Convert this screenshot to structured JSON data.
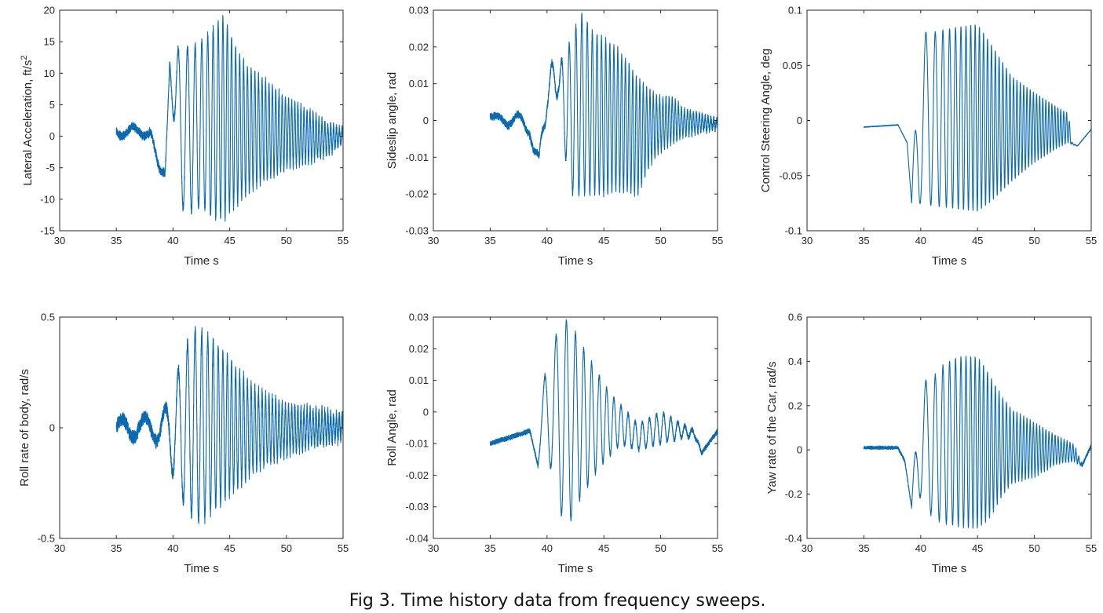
{
  "caption": "Fig 3. Time history data from frequency sweeps.",
  "colors": {
    "series": "#0b69b0",
    "axes": "#262626"
  },
  "chart_data": [
    {
      "type": "line",
      "xlabel": "Time s",
      "ylabel": "Lateral Acceleration, ft/s",
      "ylabel_sup": "2",
      "xlim": [
        30,
        55
      ],
      "ylim": [
        -15,
        20
      ],
      "xticks": [
        30,
        35,
        40,
        45,
        50,
        55
      ],
      "yticks": [
        -15,
        -10,
        -5,
        0,
        5,
        10,
        15,
        20
      ],
      "ytick_labels": [
        "-15",
        "-10",
        "-5",
        "0",
        "5",
        "10",
        "15",
        "20"
      ],
      "series": [
        {
          "x_range": [
            35,
            55
          ],
          "envelope": [
            [
              35,
              0,
              1.5
            ],
            [
              38,
              0,
              1.5
            ],
            [
              39.3,
              -6,
              -10
            ],
            [
              39.7,
              11,
              12
            ],
            [
              40.5,
              14,
              -11
            ],
            [
              41.5,
              14,
              -12
            ],
            [
              42.5,
              15,
              -11
            ],
            [
              43.5,
              17,
              -13
            ],
            [
              44.5,
              19,
              -13
            ],
            [
              45.5,
              14,
              -11
            ],
            [
              46.5,
              11,
              -9
            ],
            [
              48,
              9,
              -7
            ],
            [
              50,
              6,
              -5
            ],
            [
              52,
              4,
              -4
            ],
            [
              53.5,
              2,
              -3
            ],
            [
              55,
              1,
              -1
            ]
          ],
          "sweep": [
            [
              35,
              0.5
            ],
            [
              38.5,
              0.5
            ],
            [
              40,
              0.9
            ],
            [
              45,
              2.7
            ],
            [
              50,
              3.6
            ],
            [
              55,
              4
            ]
          ],
          "noise": 0.8
        }
      ]
    },
    {
      "type": "line",
      "xlabel": "Time s",
      "ylabel": "Sideslip angle, rad",
      "xlim": [
        30,
        55
      ],
      "ylim": [
        -0.03,
        0.03
      ],
      "xticks": [
        30,
        35,
        40,
        45,
        50,
        55
      ],
      "yticks": [
        -0.03,
        -0.02,
        -0.01,
        0,
        0.01,
        0.02,
        0.03
      ],
      "ytick_labels": [
        "-0.03",
        "-0.02",
        "-0.01",
        "0",
        "0.01",
        "0.02",
        "0.03"
      ],
      "series": [
        {
          "x_range": [
            35,
            55
          ],
          "envelope": [
            [
              35,
              0.001,
              0.001
            ],
            [
              37,
              0.002,
              -0.002
            ],
            [
              38.5,
              0.001,
              -0.004
            ],
            [
              39.3,
              -0.01,
              -0.018
            ],
            [
              40,
              0.016,
              0.003
            ],
            [
              41,
              0.015,
              0.007
            ],
            [
              42,
              0.021,
              -0.02
            ],
            [
              43,
              0.029,
              -0.02
            ],
            [
              44,
              0.024,
              -0.02
            ],
            [
              45,
              0.022,
              -0.02
            ],
            [
              46,
              0.02,
              -0.019
            ],
            [
              47,
              0.016,
              -0.019
            ],
            [
              48,
              0.011,
              -0.02
            ],
            [
              49,
              0.008,
              -0.012
            ],
            [
              50,
              0.006,
              -0.008
            ],
            [
              51,
              0.006,
              -0.006
            ],
            [
              52,
              0.003,
              -0.004
            ],
            [
              55,
              0,
              -0.002
            ]
          ],
          "sweep": [
            [
              35,
              0.5
            ],
            [
              38.5,
              0.5
            ],
            [
              40,
              0.9
            ],
            [
              45,
              2.7
            ],
            [
              50,
              3.6
            ],
            [
              55,
              4
            ]
          ],
          "noise": 0.0012
        }
      ]
    },
    {
      "type": "line",
      "xlabel": "Time s",
      "ylabel": "Control Steering Angle, deg",
      "xlim": [
        30,
        55
      ],
      "ylim": [
        -0.1,
        0.1
      ],
      "xticks": [
        30,
        35,
        40,
        45,
        50,
        55
      ],
      "yticks": [
        -0.1,
        -0.05,
        0,
        0.05,
        0.1
      ],
      "ytick_labels": [
        "-0.1",
        "-0.05",
        "0",
        "0.05",
        "0.1"
      ],
      "series": [
        {
          "x_range": [
            35,
            55
          ],
          "envelope": [
            [
              35,
              -0.006,
              -0.006
            ],
            [
              38,
              -0.004,
              -0.004
            ],
            [
              38.8,
              -0.02,
              -0.02
            ],
            [
              39.2,
              -0.075,
              -0.075
            ],
            [
              39.8,
              0.08,
              -0.075
            ],
            [
              41,
              0.08,
              -0.077
            ],
            [
              43,
              0.084,
              -0.08
            ],
            [
              45,
              0.087,
              -0.082
            ],
            [
              46,
              0.072,
              -0.075
            ],
            [
              48,
              0.04,
              -0.055
            ],
            [
              50,
              0.025,
              -0.038
            ],
            [
              52,
              0.012,
              -0.025
            ],
            [
              53,
              0.006,
              -0.02
            ],
            [
              53.3,
              -0.02,
              -0.022
            ],
            [
              53.8,
              -0.023,
              -0.023
            ],
            [
              55,
              -0.008,
              -0.008
            ]
          ],
          "sweep": [
            [
              35,
              0.5
            ],
            [
              38.5,
              0.5
            ],
            [
              40,
              0.9
            ],
            [
              45,
              2.7
            ],
            [
              50,
              3.6
            ],
            [
              53.3,
              4
            ],
            [
              55,
              4
            ]
          ],
          "noise": 0.0004
        }
      ]
    },
    {
      "type": "line",
      "xlabel": "Time s",
      "ylabel": "Roll rate of body, rad/s",
      "xlim": [
        30,
        55
      ],
      "ylim": [
        -0.5,
        0.5
      ],
      "xticks": [
        30,
        35,
        40,
        45,
        50,
        55
      ],
      "yticks": [
        -0.5,
        0,
        0.5
      ],
      "ytick_labels": [
        "-0.5",
        "0",
        "0.5"
      ],
      "series": [
        {
          "x_range": [
            35,
            55
          ],
          "envelope": [
            [
              35,
              0.04,
              -0.04
            ],
            [
              38,
              0.05,
              -0.05
            ],
            [
              39.5,
              0.1,
              -0.08
            ],
            [
              40,
              0.18,
              -0.22
            ],
            [
              41,
              0.35,
              -0.35
            ],
            [
              42,
              0.44,
              -0.42
            ],
            [
              43,
              0.42,
              -0.4
            ],
            [
              44,
              0.36,
              -0.34
            ],
            [
              45,
              0.3,
              -0.3
            ],
            [
              46,
              0.24,
              -0.25
            ],
            [
              47,
              0.18,
              -0.2
            ],
            [
              48,
              0.15,
              -0.16
            ],
            [
              50,
              0.1,
              -0.12
            ],
            [
              52,
              0.08,
              -0.08
            ],
            [
              55,
              0.05,
              -0.05
            ]
          ],
          "sweep": [
            [
              35,
              0.5
            ],
            [
              38.5,
              0.5
            ],
            [
              40,
              0.9
            ],
            [
              45,
              2.7
            ],
            [
              50,
              3.6
            ],
            [
              55,
              4
            ]
          ],
          "noise": 0.035
        }
      ]
    },
    {
      "type": "line",
      "xlabel": "Time s",
      "ylabel": "Roll Angle, rad",
      "xlim": [
        30,
        55
      ],
      "ylim": [
        -0.04,
        0.03
      ],
      "xticks": [
        30,
        35,
        40,
        45,
        50,
        55
      ],
      "yticks": [
        -0.04,
        -0.03,
        -0.02,
        -0.01,
        0,
        0.01,
        0.02,
        0.03
      ],
      "ytick_labels": [
        "-0.04",
        "-0.03",
        "-0.02",
        "-0.01",
        "0",
        "0.01",
        "0.02",
        "0.03"
      ],
      "series": [
        {
          "x_range": [
            35,
            55
          ],
          "envelope": [
            [
              35,
              -0.01,
              -0.01
            ],
            [
              38.5,
              -0.006,
              -0.006
            ],
            [
              39.2,
              -0.017,
              -0.017
            ],
            [
              39.8,
              0.012,
              -0.006
            ],
            [
              40,
              0.016,
              -0.012
            ],
            [
              41,
              0.026,
              -0.03
            ],
            [
              41.8,
              0.029,
              -0.037
            ],
            [
              42.5,
              0.025,
              -0.03
            ],
            [
              43.5,
              0.018,
              -0.024
            ],
            [
              44.5,
              0.012,
              -0.018
            ],
            [
              45.5,
              0.006,
              -0.014
            ],
            [
              46.5,
              0.002,
              -0.01
            ],
            [
              48,
              -0.004,
              -0.012
            ],
            [
              50,
              0,
              -0.01
            ],
            [
              52,
              -0.004,
              -0.008
            ],
            [
              53,
              -0.006,
              -0.008
            ],
            [
              53.6,
              -0.013,
              -0.013
            ],
            [
              55,
              -0.006,
              -0.006
            ]
          ],
          "sweep": [
            [
              35,
              0.45
            ],
            [
              39,
              0.45
            ],
            [
              40,
              0.9
            ],
            [
              43,
              1.4
            ],
            [
              46,
              1.6
            ],
            [
              55,
              1.6
            ]
          ],
          "noise": 0.0009
        }
      ]
    },
    {
      "type": "line",
      "xlabel": "Time s",
      "ylabel": "Yaw rate of the Car, rad/s",
      "xlim": [
        30,
        55
      ],
      "ylim": [
        -0.4,
        0.6
      ],
      "xticks": [
        30,
        35,
        40,
        45,
        50,
        55
      ],
      "yticks": [
        -0.4,
        -0.2,
        0,
        0.2,
        0.4,
        0.6
      ],
      "ytick_labels": [
        "-0.4",
        "-0.2",
        "0",
        "0.2",
        "0.4",
        "0.6"
      ],
      "series": [
        {
          "x_range": [
            35,
            55
          ],
          "envelope": [
            [
              35,
              0.01,
              0.01
            ],
            [
              38,
              0.01,
              0.01
            ],
            [
              38.6,
              -0.05,
              -0.05
            ],
            [
              39.2,
              -0.26,
              -0.26
            ],
            [
              39.8,
              0.3,
              -0.2
            ],
            [
              41,
              0.32,
              -0.3
            ],
            [
              42,
              0.38,
              -0.33
            ],
            [
              43,
              0.41,
              -0.34
            ],
            [
              44,
              0.42,
              -0.35
            ],
            [
              45,
              0.42,
              -0.35
            ],
            [
              46,
              0.34,
              -0.31
            ],
            [
              47,
              0.25,
              -0.22
            ],
            [
              48,
              0.18,
              -0.15
            ],
            [
              50,
              0.12,
              -0.12
            ],
            [
              52,
              0.06,
              -0.06
            ],
            [
              53.5,
              0.02,
              -0.05
            ],
            [
              54.2,
              -0.07,
              -0.07
            ],
            [
              55,
              0.02,
              0.02
            ]
          ],
          "sweep": [
            [
              35,
              0.5
            ],
            [
              38.5,
              0.5
            ],
            [
              40,
              0.9
            ],
            [
              45,
              2.7
            ],
            [
              50,
              3.6
            ],
            [
              55,
              4
            ]
          ],
          "noise": 0.009
        }
      ]
    }
  ]
}
